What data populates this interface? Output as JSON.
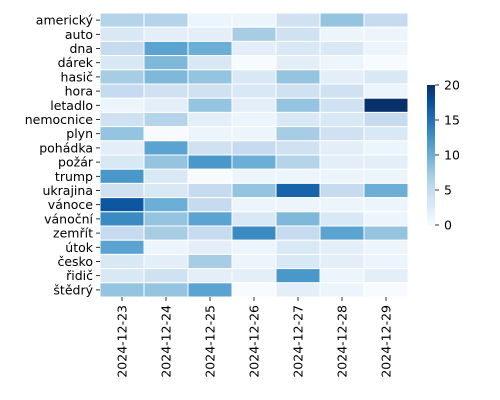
{
  "chart_data": {
    "type": "heatmap",
    "title": "",
    "xlabel": "",
    "ylabel": "",
    "x": [
      "2024-12-23",
      "2024-12-24",
      "2024-12-25",
      "2024-12-26",
      "2024-12-27",
      "2024-12-28",
      "2024-12-29"
    ],
    "y": [
      "americký",
      "auto",
      "dna",
      "dárek",
      "hasič",
      "hora",
      "letadlo",
      "nemocnice",
      "plyn",
      "pohádka",
      "požár",
      "trump",
      "ukrajina",
      "vánoce",
      "vánoční",
      "zemřít",
      "útok",
      "česko",
      "řidič",
      "štědrý"
    ],
    "values": [
      [
        6,
        6,
        1,
        1,
        4,
        8,
        5
      ],
      [
        3,
        2,
        2,
        7,
        4,
        1,
        1
      ],
      [
        5,
        11,
        10,
        2,
        3,
        3,
        1
      ],
      [
        3,
        9,
        3,
        0,
        2,
        1,
        0
      ],
      [
        7,
        9,
        8,
        3,
        8,
        2,
        3
      ],
      [
        5,
        4,
        4,
        3,
        4,
        4,
        1
      ],
      [
        1,
        2,
        8,
        2,
        8,
        4,
        20
      ],
      [
        4,
        6,
        2,
        1,
        3,
        3,
        5
      ],
      [
        8,
        0,
        1,
        1,
        7,
        4,
        3
      ],
      [
        2,
        11,
        4,
        5,
        4,
        2,
        1
      ],
      [
        3,
        8,
        12,
        10,
        6,
        2,
        2
      ],
      [
        12,
        3,
        0,
        1,
        1,
        1,
        1
      ],
      [
        4,
        3,
        5,
        8,
        16,
        5,
        10
      ],
      [
        17,
        10,
        5,
        1,
        1,
        1,
        1
      ],
      [
        13,
        8,
        11,
        3,
        9,
        3,
        1
      ],
      [
        5,
        7,
        5,
        13,
        5,
        11,
        8
      ],
      [
        11,
        1,
        2,
        1,
        3,
        2,
        1
      ],
      [
        3,
        2,
        7,
        1,
        3,
        2,
        1
      ],
      [
        3,
        4,
        2,
        2,
        12,
        1,
        2
      ],
      [
        8,
        8,
        11,
        0,
        2,
        1,
        0
      ]
    ],
    "colorbar": {
      "min": 0,
      "max": 20,
      "ticks": [
        0,
        5,
        10,
        15,
        20
      ]
    },
    "colormap": [
      "#f7fbff",
      "#deebf7",
      "#c6dbef",
      "#9ecae1",
      "#6baed6",
      "#4292c6",
      "#2171b5",
      "#08519c",
      "#08306b"
    ],
    "grid": false,
    "legend": "right"
  }
}
